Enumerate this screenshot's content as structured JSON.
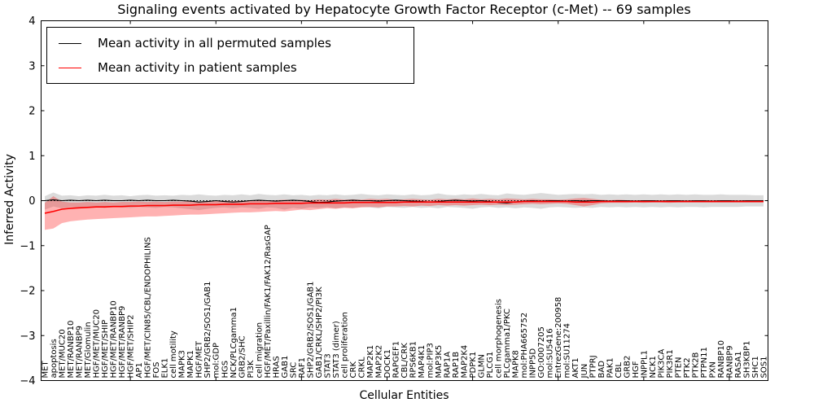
{
  "chart_data": {
    "type": "line",
    "title": "Signaling events activated by Hepatocyte Growth Factor Receptor (c-Met) -- 69 samples",
    "xlabel": "Cellular Entities",
    "ylabel": "Inferred Activity",
    "ylim": [
      -4,
      4
    ],
    "yticks": [
      4,
      3,
      2,
      1,
      0,
      -1,
      -2,
      -3,
      -4
    ],
    "x_major_tick_every": 10,
    "grid": false,
    "legend_position": "upper left",
    "background": "#ffffff",
    "categories": [
      "MET",
      "apoptosis",
      "MET/MUC20",
      "MET/RANBP10",
      "MET/RANBP9",
      "MET/Glomulin",
      "HGF/MET/MUC20",
      "HGF/MET/SHIP",
      "HGF/MET/RANBP10",
      "HGF/MET/RANBP9",
      "HGF/MET/SHIP2",
      "AP1",
      "HGF/MET/CIN85/CBL/ENDOPHILINS",
      "FOS",
      "ELK1",
      "cell motility",
      "MAPK3",
      "MAPK1",
      "HGF/MET",
      "SHP2/GRB2/SOS1/GAB1",
      "mol:GDP",
      "HGS",
      "NCK/PLCgamma1",
      "GRB2/SHC",
      "PI3K",
      "cell migration",
      "HGF/MET/Paxillin/FAK1/FAK12/RasGAP",
      "HRAS",
      "GAB1",
      "SRC",
      "RAF1",
      "SHP2/GRB2/SOS1/GAB1",
      "GAB1/CRKL/SHP2/PI3K",
      "STAT3",
      "STAT3 (dimer)",
      "cell proliferation",
      "CRK",
      "CRKL",
      "MAP2K1",
      "MAP2K2",
      "DOCK1",
      "RAPGEF1",
      "CBL/CRK",
      "RPS6KB1",
      "MAP4K1",
      "mol:PIP3",
      "MAP3K5",
      "RAP1A",
      "RAP1B",
      "MAP2K4",
      "PDPK1",
      "GLMN",
      "PLCG1",
      "cell morphogenesis",
      "PLCgamma1/PKC",
      "MAPK8",
      "mol:PHA665752",
      "INPP5D",
      "GO:0007205",
      "mol:SU5416",
      "EntrezGene:200958",
      "mol:SU11274",
      "AKT1",
      "JUN",
      "PTPRJ",
      "BAD",
      "PAK1",
      "CBL",
      "GRB2",
      "HGF",
      "INPPL1",
      "NCK1",
      "PIK3CA",
      "PIK3R1",
      "PTEN",
      "PTK2",
      "PTK2B",
      "PTPN11",
      "PXN",
      "RANBP10",
      "RANBP9",
      "RASA1",
      "SH3KBP1",
      "SHC1",
      "SOS1"
    ],
    "series": [
      {
        "name": "Mean activity in all permuted samples",
        "color": "#000000",
        "style": "solid",
        "values": [
          0.0,
          0.02,
          0.0,
          0.01,
          0.0,
          0.01,
          0.0,
          0.01,
          0.0,
          0.0,
          0.01,
          0.0,
          0.01,
          0.0,
          0.0,
          0.01,
          0.0,
          -0.01,
          -0.03,
          -0.02,
          0.0,
          -0.02,
          -0.03,
          -0.02,
          0.0,
          0.01,
          0.0,
          -0.01,
          0.0,
          0.01,
          0.0,
          -0.02,
          -0.04,
          -0.03,
          -0.01,
          0.0,
          0.01,
          0.0,
          0.0,
          -0.01,
          0.0,
          0.01,
          0.0,
          -0.01,
          -0.02,
          -0.03,
          -0.02,
          0.0,
          0.01,
          0.0,
          -0.01,
          0.0,
          -0.02,
          -0.04,
          -0.05,
          -0.03,
          -0.01,
          0.0,
          -0.01,
          0.0,
          0.0,
          -0.01,
          0.0,
          -0.01,
          0.0,
          0.0,
          -0.01,
          0.0,
          0.0,
          -0.01,
          0.0,
          0.0,
          -0.01,
          0.0,
          0.0,
          -0.01,
          0.0,
          0.0,
          -0.01,
          0.0,
          0.0,
          -0.01,
          0.0,
          0.0,
          0.0
        ]
      },
      {
        "name": "Mean activity in patient samples",
        "color": "#ff0000",
        "style": "solid",
        "values": [
          -0.28,
          -0.24,
          -0.19,
          -0.17,
          -0.16,
          -0.15,
          -0.14,
          -0.14,
          -0.13,
          -0.13,
          -0.12,
          -0.12,
          -0.11,
          -0.11,
          -0.11,
          -0.1,
          -0.1,
          -0.1,
          -0.09,
          -0.09,
          -0.09,
          -0.08,
          -0.08,
          -0.08,
          -0.07,
          -0.07,
          -0.07,
          -0.06,
          -0.06,
          -0.06,
          -0.06,
          -0.05,
          -0.05,
          -0.05,
          -0.05,
          -0.05,
          -0.04,
          -0.04,
          -0.04,
          -0.04,
          -0.04,
          -0.04,
          -0.03,
          -0.03,
          -0.03,
          -0.03,
          -0.03,
          -0.03,
          -0.03,
          -0.03,
          -0.03,
          -0.03,
          -0.03,
          -0.03,
          -0.03,
          -0.03,
          -0.02,
          -0.02,
          -0.02,
          -0.02,
          -0.02,
          -0.02,
          -0.03,
          -0.03,
          -0.03,
          -0.02,
          -0.02,
          -0.02,
          -0.02,
          -0.02,
          -0.02,
          -0.02,
          -0.02,
          -0.02,
          -0.02,
          -0.02,
          -0.02,
          -0.02,
          -0.02,
          -0.02,
          -0.02,
          -0.02,
          -0.02,
          -0.02,
          -0.02
        ]
      }
    ],
    "bands": [
      {
        "name": "permuted samples range",
        "color": "#000000",
        "opacity": 0.14,
        "upper": [
          0.1,
          0.18,
          0.11,
          0.12,
          0.1,
          0.12,
          0.11,
          0.13,
          0.11,
          0.12,
          0.1,
          0.12,
          0.13,
          0.11,
          0.12,
          0.11,
          0.13,
          0.12,
          0.14,
          0.12,
          0.11,
          0.13,
          0.12,
          0.14,
          0.12,
          0.15,
          0.13,
          0.12,
          0.14,
          0.12,
          0.13,
          0.11,
          0.13,
          0.12,
          0.14,
          0.12,
          0.13,
          0.15,
          0.13,
          0.12,
          0.14,
          0.13,
          0.12,
          0.14,
          0.12,
          0.13,
          0.16,
          0.13,
          0.12,
          0.14,
          0.13,
          0.15,
          0.13,
          0.12,
          0.16,
          0.14,
          0.13,
          0.15,
          0.17,
          0.15,
          0.13,
          0.14,
          0.15,
          0.14,
          0.15,
          0.13,
          0.14,
          0.13,
          0.14,
          0.13,
          0.14,
          0.13,
          0.14,
          0.13,
          0.14,
          0.13,
          0.14,
          0.13,
          0.13,
          0.14,
          0.13,
          0.13,
          0.13,
          0.12,
          0.12
        ],
        "lower": [
          -0.2,
          -0.13,
          -0.17,
          -0.14,
          -0.16,
          -0.14,
          -0.15,
          -0.16,
          -0.14,
          -0.15,
          -0.16,
          -0.14,
          -0.15,
          -0.16,
          -0.14,
          -0.15,
          -0.17,
          -0.19,
          -0.21,
          -0.18,
          -0.16,
          -0.15,
          -0.17,
          -0.15,
          -0.16,
          -0.18,
          -0.15,
          -0.16,
          -0.2,
          -0.16,
          -0.18,
          -0.15,
          -0.16,
          -0.14,
          -0.17,
          -0.15,
          -0.16,
          -0.14,
          -0.15,
          -0.17,
          -0.14,
          -0.15,
          -0.16,
          -0.14,
          -0.16,
          -0.15,
          -0.17,
          -0.14,
          -0.15,
          -0.16,
          -0.18,
          -0.15,
          -0.14,
          -0.16,
          -0.15,
          -0.17,
          -0.15,
          -0.16,
          -0.18,
          -0.15,
          -0.14,
          -0.15,
          -0.16,
          -0.15,
          -0.16,
          -0.14,
          -0.15,
          -0.14,
          -0.15,
          -0.14,
          -0.15,
          -0.14,
          -0.15,
          -0.14,
          -0.15,
          -0.14,
          -0.14,
          -0.15,
          -0.14,
          -0.14,
          -0.14,
          -0.14,
          -0.13,
          -0.13,
          -0.13
        ]
      },
      {
        "name": "patient samples range",
        "color": "#ff0000",
        "opacity": 0.3,
        "upper": [
          -0.05,
          0.1,
          -0.02,
          -0.04,
          -0.04,
          -0.03,
          -0.04,
          -0.03,
          -0.04,
          -0.03,
          -0.03,
          -0.02,
          -0.03,
          -0.02,
          -0.03,
          -0.02,
          -0.02,
          -0.01,
          -0.02,
          -0.01,
          -0.01,
          0.0,
          -0.01,
          0.0,
          0.0,
          0.01,
          0.0,
          0.01,
          0.02,
          0.01,
          0.02,
          0.01,
          0.03,
          0.02,
          0.04,
          0.02,
          0.03,
          0.02,
          0.04,
          0.03,
          0.04,
          0.02,
          0.03,
          0.04,
          0.03,
          0.02,
          0.04,
          0.03,
          0.04,
          0.03,
          0.05,
          0.03,
          0.04,
          0.03,
          0.05,
          0.04,
          0.03,
          0.04,
          0.03,
          0.03,
          0.02,
          0.03,
          0.05,
          0.06,
          0.04,
          0.02,
          0.01,
          0.02,
          0.01,
          0.01,
          0.01,
          0.01,
          0.01,
          0.01,
          0.01,
          0.01,
          0.01,
          0.01,
          0.01,
          0.01,
          0.01,
          0.01,
          0.01,
          0.01,
          0.01
        ],
        "lower": [
          -0.65,
          -0.62,
          -0.5,
          -0.46,
          -0.44,
          -0.42,
          -0.41,
          -0.4,
          -0.39,
          -0.38,
          -0.37,
          -0.36,
          -0.35,
          -0.35,
          -0.34,
          -0.33,
          -0.32,
          -0.31,
          -0.31,
          -0.3,
          -0.29,
          -0.28,
          -0.27,
          -0.26,
          -0.26,
          -0.25,
          -0.24,
          -0.23,
          -0.24,
          -0.22,
          -0.2,
          -0.21,
          -0.19,
          -0.17,
          -0.18,
          -0.16,
          -0.17,
          -0.15,
          -0.14,
          -0.15,
          -0.13,
          -0.13,
          -0.12,
          -0.13,
          -0.11,
          -0.12,
          -0.1,
          -0.11,
          -0.1,
          -0.11,
          -0.1,
          -0.09,
          -0.1,
          -0.09,
          -0.1,
          -0.09,
          -0.08,
          -0.07,
          -0.08,
          -0.07,
          -0.06,
          -0.07,
          -0.1,
          -0.13,
          -0.1,
          -0.06,
          -0.05,
          -0.05,
          -0.05,
          -0.04,
          -0.05,
          -0.04,
          -0.04,
          -0.05,
          -0.04,
          -0.04,
          -0.04,
          -0.04,
          -0.04,
          -0.04,
          -0.04,
          -0.04,
          -0.04,
          -0.04,
          -0.04
        ]
      }
    ],
    "zero_line": {
      "value": 0,
      "style": "dashed",
      "color": "#000000"
    }
  }
}
